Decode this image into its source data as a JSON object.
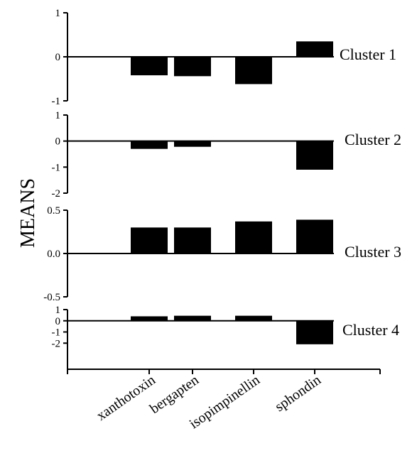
{
  "chart_data": {
    "type": "bar",
    "ylabel": "MEANS",
    "categories": [
      "xanthotoxin",
      "bergapten",
      "isopimpinellin",
      "sphondin"
    ],
    "panels": [
      {
        "name": "Cluster 1",
        "ylim": [
          -1,
          1
        ],
        "ticks": [
          "1",
          "0",
          "-1"
        ],
        "tick_values": [
          1,
          0,
          -1
        ],
        "values": [
          -0.42,
          -0.44,
          -0.62,
          0.35
        ]
      },
      {
        "name": "Cluster 2",
        "ylim": [
          -2,
          1
        ],
        "ticks": [
          "1",
          "0",
          "-1",
          "-2"
        ],
        "tick_values": [
          1,
          0,
          -1,
          -2
        ],
        "values": [
          -0.3,
          -0.22,
          null,
          -1.1
        ]
      },
      {
        "name": "Cluster 3",
        "ylim": [
          -0.5,
          0.5
        ],
        "ticks": [
          "0.5",
          "0.0",
          "-0.5"
        ],
        "tick_values": [
          0.5,
          0,
          -0.5
        ],
        "values": [
          0.3,
          0.3,
          0.37,
          0.39
        ]
      },
      {
        "name": "Cluster 4",
        "ylim": [
          -2.3,
          1
        ],
        "ticks": [
          "1",
          "0",
          "-1",
          "-2"
        ],
        "tick_values": [
          1,
          0,
          -1,
          -2
        ],
        "values": [
          0.4,
          0.45,
          0.45,
          -2.1
        ]
      }
    ]
  }
}
